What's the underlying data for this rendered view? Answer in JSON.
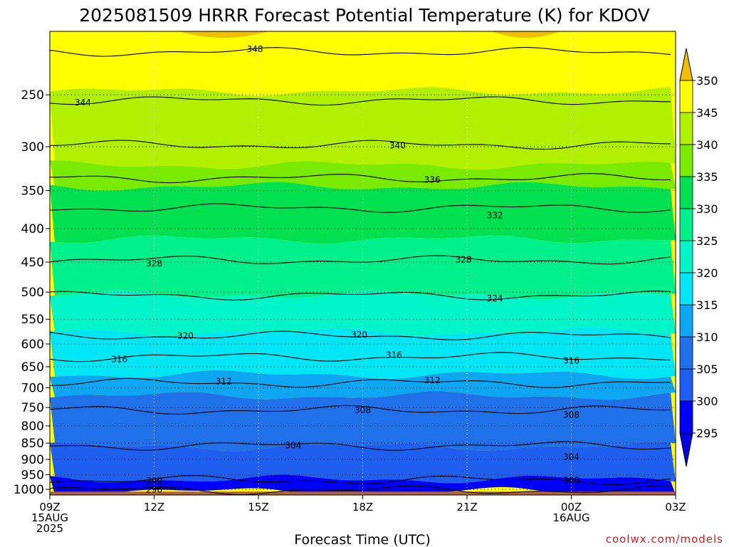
{
  "title": "2025081509 HRRR Forecast Potential Temperature (K) for KDOV",
  "xlabel": "Forecast Time (UTC)",
  "credit": "coolwx.com/models",
  "colors": {
    "band_295_300": "#0000ff",
    "band_300_305": "#1e5ff0",
    "band_305_310": "#2070ea",
    "band_310_315": "#0da6f2",
    "band_315_320": "#00e6f5",
    "band_320_325": "#00f5c8",
    "band_325_330": "#00f08c",
    "band_330_335": "#00e050",
    "band_335_340": "#7aeb00",
    "band_340_345": "#b0f000",
    "band_345_350": "#ffff00",
    "band_350_up": "#f0c000",
    "ground": "#b0623c",
    "contour": "#000000"
  },
  "chart_data": {
    "type": "heatmap",
    "title": "2025081509 HRRR Forecast Potential Temperature (K) for KDOV",
    "xlabel": "Forecast Time (UTC)",
    "ylabel": "",
    "x_ticks": [
      {
        "hour": 0,
        "lines": [
          "09Z",
          "15AUG",
          "2025"
        ]
      },
      {
        "hour": 3,
        "lines": [
          "12Z"
        ]
      },
      {
        "hour": 6,
        "lines": [
          "15Z"
        ]
      },
      {
        "hour": 9,
        "lines": [
          "18Z"
        ]
      },
      {
        "hour": 12,
        "lines": [
          "21Z"
        ]
      },
      {
        "hour": 15,
        "lines": [
          "00Z",
          "16AUG"
        ]
      },
      {
        "hour": 18,
        "lines": [
          "03Z"
        ]
      }
    ],
    "xlim_hours": [
      0,
      18
    ],
    "y_axis": "pressure (hPa), log scale, inverted",
    "ylim": [
      1020,
      200
    ],
    "y_ticks": [
      250,
      300,
      350,
      400,
      450,
      500,
      550,
      600,
      650,
      700,
      750,
      800,
      850,
      900,
      950,
      1000
    ],
    "grid": "dotted",
    "colorbar": {
      "labels": [
        350,
        345,
        340,
        335,
        330,
        325,
        320,
        315,
        310,
        305,
        300,
        295
      ],
      "extend": "both",
      "placement": "right"
    },
    "fill_bands": [
      {
        "range": [
          345,
          350
        ],
        "pressure_top": 200,
        "pressure_bottom": 247
      },
      {
        "range": [
          340,
          345
        ],
        "pressure_top": 247,
        "pressure_bottom": 320
      },
      {
        "range": [
          335,
          340
        ],
        "pressure_top": 320,
        "pressure_bottom": 345
      },
      {
        "range": [
          330,
          335
        ],
        "pressure_top": 345,
        "pressure_bottom": 415
      },
      {
        "range": [
          325,
          330
        ],
        "pressure_top": 415,
        "pressure_bottom": 505
      },
      {
        "range": [
          320,
          325
        ],
        "pressure_top": 505,
        "pressure_bottom": 575
      },
      {
        "range": [
          315,
          320
        ],
        "pressure_top": 575,
        "pressure_bottom": 668
      },
      {
        "range": [
          310,
          315
        ],
        "pressure_top": 668,
        "pressure_bottom": 720
      },
      {
        "range": [
          305,
          310
        ],
        "pressure_top": 720,
        "pressure_bottom": 860
      },
      {
        "range": [
          300,
          305
        ],
        "pressure_top": 860,
        "pressure_bottom": 965
      },
      {
        "range": [
          295,
          300
        ],
        "pressure_top": 965,
        "pressure_bottom": 1008
      }
    ],
    "contours": [
      {
        "value": 348,
        "pressure": 215
      },
      {
        "value": 344,
        "pressure": 255
      },
      {
        "value": 340,
        "pressure": 298
      },
      {
        "value": 336,
        "pressure": 335
      },
      {
        "value": 332,
        "pressure": 372
      },
      {
        "value": 328,
        "pressure": 447
      },
      {
        "value": 324,
        "pressure": 506
      },
      {
        "value": 320,
        "pressure": 583
      },
      {
        "value": 316,
        "pressure": 628
      },
      {
        "value": 312,
        "pressure": 688
      },
      {
        "value": 308,
        "pressure": 757
      },
      {
        "value": 304,
        "pressure": 858
      },
      {
        "value": 300,
        "pressure": 968
      },
      {
        "value": 296,
        "pressure": 1003
      }
    ],
    "contour_labels": [
      {
        "text": "348",
        "hour": 5.9,
        "pressure": 213
      },
      {
        "text": "344",
        "hour": 0.95,
        "pressure": 257
      },
      {
        "text": "340",
        "hour": 10.0,
        "pressure": 299
      },
      {
        "text": "336",
        "hour": 11.0,
        "pressure": 337
      },
      {
        "text": "332",
        "hour": 12.8,
        "pressure": 382
      },
      {
        "text": "328",
        "hour": 3.0,
        "pressure": 452
      },
      {
        "text": "328",
        "hour": 11.9,
        "pressure": 446
      },
      {
        "text": "324",
        "hour": 12.8,
        "pressure": 511
      },
      {
        "text": "320",
        "hour": 3.9,
        "pressure": 583
      },
      {
        "text": "320",
        "hour": 8.9,
        "pressure": 581
      },
      {
        "text": "316",
        "hour": 2.0,
        "pressure": 633
      },
      {
        "text": "316",
        "hour": 9.9,
        "pressure": 624
      },
      {
        "text": "316",
        "hour": 15.0,
        "pressure": 636
      },
      {
        "text": "312",
        "hour": 5.0,
        "pressure": 684
      },
      {
        "text": "312",
        "hour": 11.0,
        "pressure": 682
      },
      {
        "text": "308",
        "hour": 9.0,
        "pressure": 757
      },
      {
        "text": "308",
        "hour": 15.0,
        "pressure": 770
      },
      {
        "text": "304",
        "hour": 7.0,
        "pressure": 857
      },
      {
        "text": "304",
        "hour": 15.0,
        "pressure": 892
      },
      {
        "text": "300",
        "hour": 3.0,
        "pressure": 970
      },
      {
        "text": "300",
        "hour": 15.0,
        "pressure": 969
      },
      {
        "text": "296",
        "hour": 3.0,
        "pressure": 1001
      }
    ]
  }
}
